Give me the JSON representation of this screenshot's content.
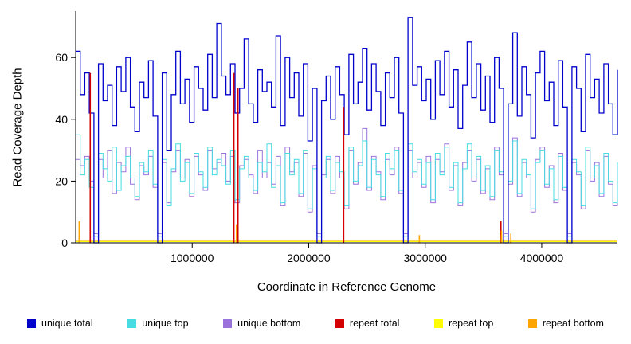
{
  "chart_data": {
    "type": "line",
    "title": "",
    "xlabel": "Coordinate in Reference Genome",
    "ylabel": "Read Coverage Depth",
    "xlim": [
      0,
      4650000
    ],
    "ylim": [
      0,
      75
    ],
    "xticks": [
      1000000,
      2000000,
      3000000,
      4000000
    ],
    "yticks": [
      0,
      20,
      40,
      60
    ],
    "grid": false,
    "legend_position": "bottom",
    "step_series": [
      {
        "name": "unique total",
        "color": "#0000CD",
        "width": 1.3,
        "values": [
          62,
          48,
          55,
          42,
          0,
          58,
          46,
          51,
          38,
          57,
          49,
          60,
          44,
          36,
          52,
          47,
          59,
          41,
          0,
          55,
          30,
          48,
          62,
          45,
          53,
          39,
          57,
          50,
          43,
          61,
          47,
          71,
          54,
          48,
          58,
          42,
          50,
          66,
          45,
          39,
          56,
          49,
          52,
          44,
          67,
          38,
          60,
          47,
          55,
          41,
          58,
          33,
          50,
          0,
          46,
          54,
          40,
          57,
          48,
          35,
          61,
          45,
          52,
          63,
          43,
          58,
          49,
          38,
          55,
          47,
          60,
          42,
          0,
          73,
          51,
          57,
          46,
          53,
          40,
          59,
          48,
          62,
          44,
          56,
          37,
          51,
          65,
          47,
          58,
          43,
          54,
          39,
          60,
          50,
          0,
          45,
          68,
          41,
          57,
          48,
          34,
          55,
          62,
          46,
          52,
          38,
          59,
          44,
          0,
          57,
          50,
          36,
          61,
          47,
          53,
          42,
          58,
          45,
          35,
          56
        ]
      },
      {
        "name": "unique top",
        "color": "#45DCE2",
        "width": 1,
        "values": [
          35,
          22,
          27,
          18,
          2,
          29,
          24,
          20,
          31,
          17,
          25,
          28,
          21,
          15,
          26,
          23,
          30,
          19,
          2,
          27,
          12,
          24,
          32,
          20,
          26,
          16,
          29,
          23,
          18,
          31,
          22,
          27,
          25,
          19,
          30,
          14,
          24,
          28,
          21,
          17,
          26,
          23,
          32,
          18,
          25,
          13,
          29,
          22,
          27,
          16,
          30,
          11,
          24,
          2,
          21,
          28,
          17,
          26,
          23,
          12,
          31,
          20,
          25,
          33,
          18,
          27,
          22,
          15,
          29,
          24,
          30,
          17,
          2,
          32,
          23,
          27,
          19,
          26,
          14,
          29,
          22,
          31,
          18,
          26,
          13,
          24,
          32,
          21,
          28,
          17,
          25,
          15,
          30,
          23,
          2,
          20,
          33,
          16,
          27,
          22,
          11,
          26,
          30,
          19,
          24,
          14,
          28,
          18,
          2,
          27,
          23,
          12,
          31,
          21,
          25,
          16,
          29,
          20,
          13,
          26
        ]
      },
      {
        "name": "unique bottom",
        "color": "#9B72DB",
        "width": 1,
        "values": [
          27,
          25,
          28,
          20,
          3,
          27,
          21,
          30,
          16,
          26,
          23,
          31,
          19,
          14,
          25,
          22,
          28,
          18,
          3,
          26,
          13,
          23,
          30,
          21,
          27,
          15,
          28,
          22,
          17,
          30,
          24,
          26,
          29,
          20,
          28,
          13,
          25,
          27,
          22,
          16,
          30,
          21,
          26,
          19,
          28,
          12,
          31,
          23,
          26,
          15,
          29,
          10,
          25,
          3,
          22,
          27,
          16,
          28,
          21,
          11,
          30,
          19,
          26,
          37,
          17,
          28,
          23,
          14,
          27,
          22,
          31,
          16,
          3,
          30,
          21,
          26,
          18,
          28,
          13,
          27,
          23,
          32,
          17,
          25,
          12,
          26,
          30,
          20,
          27,
          16,
          24,
          14,
          31,
          22,
          3,
          19,
          34,
          15,
          26,
          21,
          10,
          27,
          31,
          18,
          25,
          13,
          29,
          17,
          3,
          26,
          22,
          11,
          30,
          20,
          26,
          15,
          28,
          19,
          12,
          25
        ]
      }
    ],
    "spike_series": [
      {
        "name": "repeat total",
        "color": "#D40000",
        "baseline": null,
        "spikes": [
          [
            125000,
            55
          ],
          [
            1358000,
            55
          ],
          [
            1393000,
            50
          ],
          [
            2300000,
            44
          ],
          [
            3650000,
            7
          ]
        ]
      },
      {
        "name": "repeat top",
        "color": "#FFFF00",
        "baseline": 0.4,
        "spikes": [
          [
            3655000,
            2.5
          ]
        ]
      },
      {
        "name": "repeat bottom",
        "color": "#FFA500",
        "baseline": 0.8,
        "spikes": [
          [
            30000,
            7
          ],
          [
            1380000,
            6
          ],
          [
            2950000,
            2.5
          ],
          [
            3655000,
            4
          ],
          [
            3735000,
            3
          ]
        ]
      }
    ],
    "legend": [
      {
        "label": "unique total",
        "color": "#0000CD"
      },
      {
        "label": "unique top",
        "color": "#45DCE2"
      },
      {
        "label": "unique bottom",
        "color": "#9B72DB"
      },
      {
        "label": "repeat total",
        "color": "#D40000"
      },
      {
        "label": "repeat top",
        "color": "#FFFF00"
      },
      {
        "label": "repeat bottom",
        "color": "#FFA500"
      }
    ]
  }
}
